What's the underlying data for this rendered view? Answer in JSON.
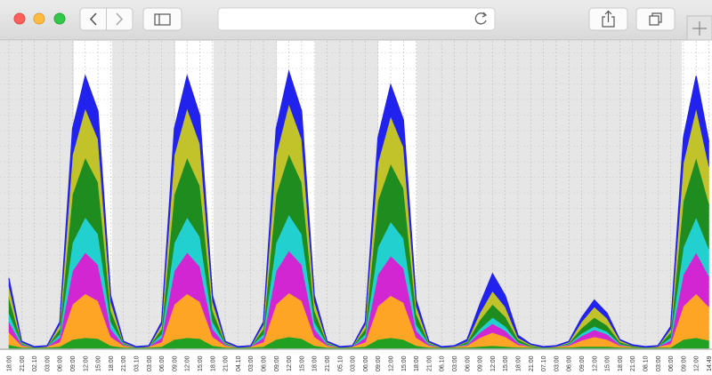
{
  "chart_data": {
    "type": "stacked-area",
    "categories": [
      "18:00",
      "21:00",
      "02.10",
      "03:00",
      "06:00",
      "09:00",
      "12:00",
      "15:00",
      "18:00",
      "21:00",
      "03.10",
      "03:00",
      "06:00",
      "09:00",
      "12:00",
      "15:00",
      "18:00",
      "21:00",
      "04.10",
      "03:00",
      "06:00",
      "09:00",
      "12:00",
      "15:00",
      "18:00",
      "21:00",
      "05.10",
      "03:00",
      "06:00",
      "09:00",
      "12:00",
      "15:00",
      "18:00",
      "21:00",
      "06.10",
      "03:00",
      "06:00",
      "09:00",
      "12:00",
      "15:00",
      "18:00",
      "21:00",
      "07.10",
      "03:00",
      "06:00",
      "09:00",
      "12:00",
      "15:00",
      "18:00",
      "21:00",
      "08.10",
      "03:00",
      "06:00",
      "09:00",
      "12:00",
      "14:49"
    ],
    "series": [
      {
        "color": "#22a022",
        "values": [
          4,
          1,
          1,
          1,
          2,
          10,
          12,
          11,
          3,
          1,
          1,
          1,
          2,
          10,
          12,
          11,
          3,
          1,
          1,
          1,
          2,
          10,
          13,
          11,
          3,
          1,
          1,
          1,
          2,
          10,
          12,
          10,
          3,
          1,
          1,
          1,
          1,
          2,
          3,
          2,
          1,
          1,
          1,
          1,
          1,
          2,
          2,
          2,
          1,
          1,
          1,
          1,
          1,
          10,
          12,
          9
        ]
      },
      {
        "color": "#ffa526",
        "values": [
          14,
          2,
          0,
          1,
          5,
          40,
          50,
          43,
          10,
          2,
          0,
          1,
          5,
          40,
          50,
          42,
          10,
          2,
          0,
          1,
          5,
          40,
          50,
          43,
          10,
          2,
          0,
          1,
          5,
          38,
          48,
          42,
          9,
          2,
          0,
          1,
          2,
          10,
          15,
          11,
          3,
          1,
          0,
          1,
          2,
          7,
          11,
          8,
          2,
          1,
          0,
          1,
          4,
          38,
          50,
          38
        ]
      },
      {
        "color": "#d326d3",
        "values": [
          12,
          1,
          0,
          0,
          5,
          38,
          47,
          41,
          9,
          1,
          0,
          0,
          5,
          38,
          47,
          40,
          9,
          1,
          0,
          0,
          5,
          38,
          48,
          41,
          9,
          1,
          0,
          0,
          5,
          36,
          45,
          39,
          8,
          1,
          0,
          0,
          1,
          6,
          10,
          7,
          2,
          0,
          0,
          0,
          1,
          5,
          8,
          6,
          1,
          0,
          0,
          0,
          4,
          36,
          47,
          35
        ]
      },
      {
        "color": "#22d0d0",
        "values": [
          10,
          1,
          0,
          0,
          4,
          32,
          40,
          35,
          8,
          1,
          0,
          0,
          4,
          32,
          40,
          34,
          8,
          1,
          0,
          0,
          4,
          32,
          41,
          35,
          8,
          1,
          0,
          0,
          4,
          31,
          39,
          34,
          7,
          1,
          0,
          0,
          1,
          4,
          7,
          5,
          1,
          0,
          0,
          0,
          1,
          3,
          4,
          3,
          1,
          0,
          0,
          0,
          3,
          31,
          40,
          31
        ]
      },
      {
        "color": "#1f8c1f",
        "values": [
          18,
          1,
          0,
          0,
          6,
          55,
          68,
          59,
          13,
          1,
          0,
          0,
          6,
          55,
          68,
          58,
          13,
          1,
          0,
          0,
          6,
          55,
          69,
          59,
          13,
          1,
          0,
          0,
          6,
          53,
          66,
          57,
          12,
          1,
          0,
          0,
          2,
          10,
          15,
          11,
          3,
          1,
          0,
          0,
          1,
          6,
          10,
          7,
          2,
          1,
          0,
          0,
          6,
          53,
          68,
          52
        ]
      },
      {
        "color": "#c2c22a",
        "values": [
          13,
          1,
          0,
          0,
          5,
          45,
          56,
          49,
          10,
          1,
          0,
          0,
          5,
          45,
          56,
          48,
          10,
          1,
          0,
          0,
          5,
          45,
          57,
          49,
          10,
          1,
          0,
          0,
          5,
          43,
          54,
          47,
          9,
          1,
          0,
          0,
          1,
          8,
          15,
          11,
          2,
          1,
          0,
          0,
          1,
          7,
          12,
          8,
          2,
          0,
          0,
          0,
          4,
          43,
          56,
          42
        ]
      },
      {
        "color": "#2222ee",
        "values": [
          9,
          1,
          1,
          1,
          3,
          30,
          37,
          32,
          7,
          1,
          1,
          1,
          3,
          30,
          37,
          32,
          7,
          1,
          1,
          1,
          3,
          30,
          37,
          32,
          7,
          1,
          1,
          1,
          3,
          29,
          36,
          31,
          7,
          1,
          1,
          1,
          2,
          10,
          20,
          13,
          3,
          1,
          1,
          1,
          1,
          5,
          8,
          6,
          1,
          1,
          1,
          1,
          3,
          29,
          37,
          28
        ]
      }
    ],
    "ylim": [
      0,
      350
    ],
    "date_label_color": "#c83c3c"
  }
}
